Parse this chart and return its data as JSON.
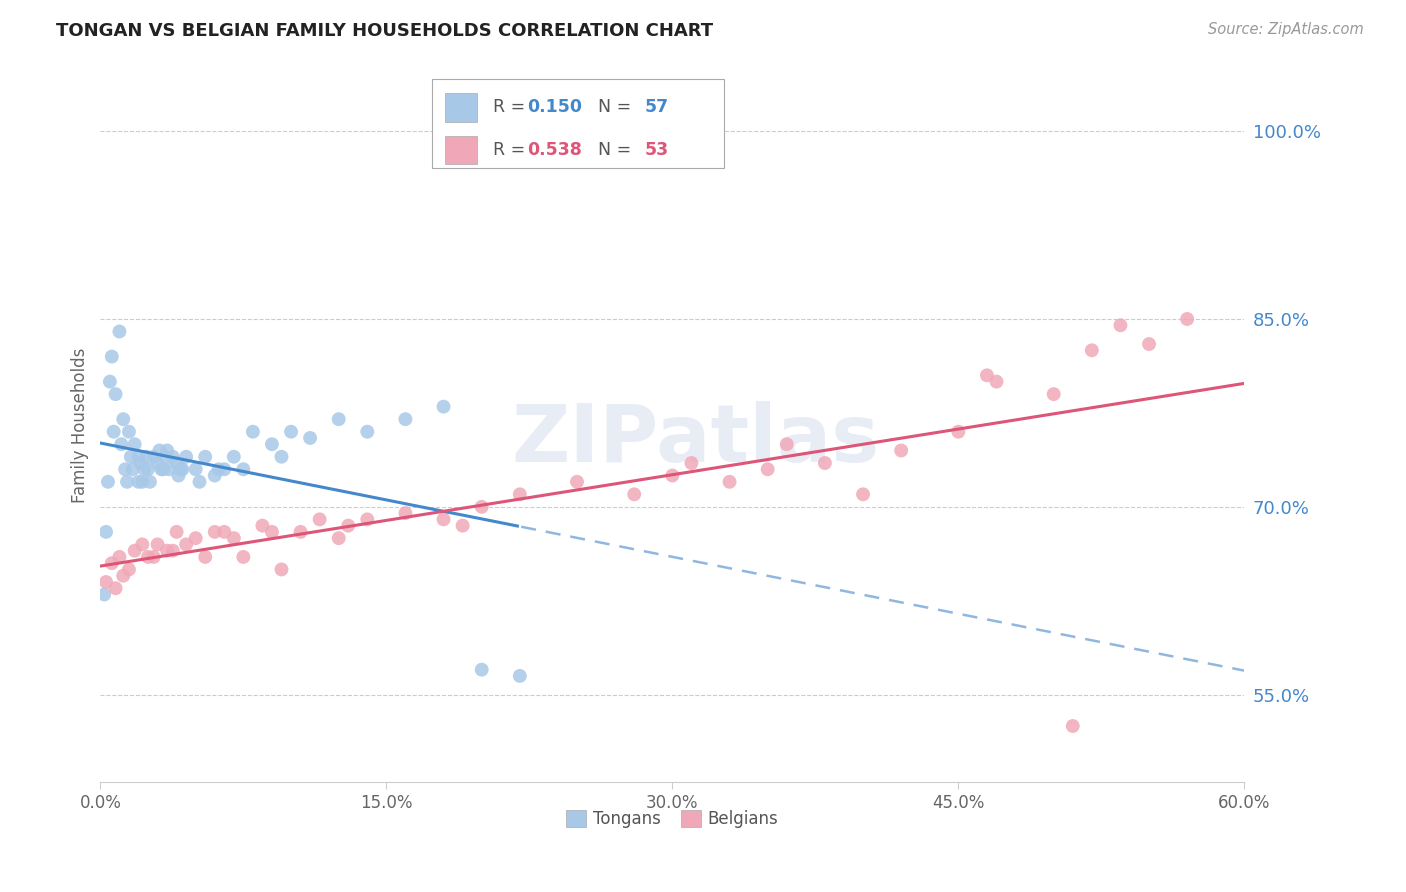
{
  "title": "TONGAN VS BELGIAN FAMILY HOUSEHOLDS CORRELATION CHART",
  "source": "Source: ZipAtlas.com",
  "ylabel": "Family Households",
  "yticks": [
    55.0,
    70.0,
    85.0,
    100.0
  ],
  "xticks": [
    0.0,
    15.0,
    30.0,
    45.0,
    60.0
  ],
  "xlim": [
    0.0,
    60.0
  ],
  "ylim": [
    48.0,
    105.0
  ],
  "legend_blue_R": "0.150",
  "legend_blue_N": "57",
  "legend_pink_R": "0.538",
  "legend_pink_N": "53",
  "blue_color": "#a8c8e8",
  "pink_color": "#f0a8b8",
  "blue_line_color": "#4488cc",
  "pink_line_color": "#dd5577",
  "watermark": "ZIPatlas",
  "blue_scatter_x": [
    0.2,
    0.4,
    0.5,
    0.6,
    0.8,
    1.0,
    1.1,
    1.2,
    1.3,
    1.5,
    1.6,
    1.7,
    1.8,
    2.0,
    2.0,
    2.1,
    2.2,
    2.4,
    2.5,
    2.6,
    2.8,
    3.0,
    3.1,
    3.2,
    3.4,
    3.5,
    3.6,
    3.8,
    4.0,
    4.1,
    4.3,
    4.5,
    5.0,
    5.5,
    6.0,
    6.5,
    7.0,
    8.0,
    9.0,
    10.0,
    11.0,
    12.5,
    14.0,
    16.0,
    18.0,
    20.0,
    22.0,
    0.3,
    0.7,
    1.4,
    2.3,
    3.3,
    4.2,
    5.2,
    6.2,
    7.5,
    9.5
  ],
  "blue_scatter_y": [
    63.0,
    72.0,
    80.0,
    82.0,
    79.0,
    84.0,
    75.0,
    77.0,
    73.0,
    76.0,
    74.0,
    73.0,
    75.0,
    74.0,
    72.0,
    73.5,
    72.0,
    74.0,
    73.0,
    72.0,
    74.0,
    73.5,
    74.5,
    73.0,
    74.0,
    74.5,
    73.0,
    74.0,
    73.5,
    72.5,
    73.0,
    74.0,
    73.0,
    74.0,
    72.5,
    73.0,
    74.0,
    76.0,
    75.0,
    76.0,
    75.5,
    77.0,
    76.0,
    77.0,
    78.0,
    57.0,
    56.5,
    68.0,
    76.0,
    72.0,
    73.0,
    73.0,
    73.0,
    72.0,
    73.0,
    73.0,
    74.0
  ],
  "pink_scatter_x": [
    0.3,
    0.6,
    1.0,
    1.5,
    1.8,
    2.2,
    2.5,
    3.0,
    3.5,
    4.0,
    4.5,
    5.0,
    5.5,
    6.0,
    7.0,
    7.5,
    8.5,
    9.5,
    10.5,
    11.5,
    12.5,
    14.0,
    16.0,
    18.0,
    20.0,
    22.0,
    25.0,
    28.0,
    30.0,
    33.0,
    35.0,
    38.0,
    40.0,
    42.0,
    45.0,
    47.0,
    50.0,
    52.0,
    55.0,
    57.0,
    6.5,
    13.0,
    31.0,
    36.0,
    46.5,
    51.0,
    53.5,
    0.8,
    1.2,
    2.8,
    3.8,
    9.0,
    19.0
  ],
  "pink_scatter_y": [
    64.0,
    65.5,
    66.0,
    65.0,
    66.5,
    67.0,
    66.0,
    67.0,
    66.5,
    68.0,
    67.0,
    67.5,
    66.0,
    68.0,
    67.5,
    66.0,
    68.5,
    65.0,
    68.0,
    69.0,
    67.5,
    69.0,
    69.5,
    69.0,
    70.0,
    71.0,
    72.0,
    71.0,
    72.5,
    72.0,
    73.0,
    73.5,
    71.0,
    74.5,
    76.0,
    80.0,
    79.0,
    82.5,
    83.0,
    85.0,
    68.0,
    68.5,
    73.5,
    75.0,
    80.5,
    52.5,
    84.5,
    63.5,
    64.5,
    66.0,
    66.5,
    68.0,
    68.5
  ],
  "blue_solid_xmax": 22.0,
  "pink_solid": true
}
